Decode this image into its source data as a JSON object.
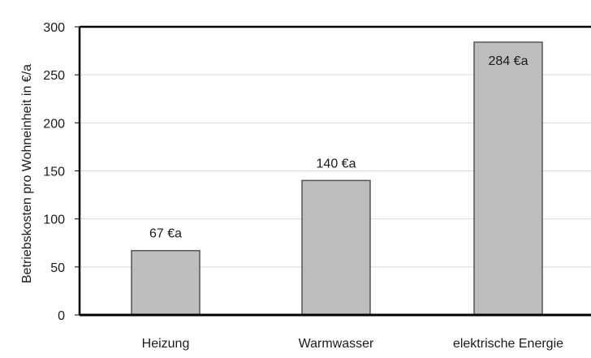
{
  "chart_data": {
    "type": "bar",
    "title": "",
    "xlabel": "",
    "ylabel": "Betriebskosten pro Wohneinheit in €/a",
    "categories": [
      "Heizung",
      "Warmwasser",
      "elektrische Energie"
    ],
    "values": [
      67,
      140,
      284
    ],
    "data_labels": [
      "67 €a",
      "140 €a",
      "284 €a"
    ],
    "ylim": [
      0,
      300
    ],
    "yticks": [
      0,
      50,
      100,
      150,
      200,
      250,
      300
    ],
    "grid": true,
    "legend": "none",
    "colors": {
      "bar_fill": "#bdbdbd",
      "bar_stroke": "#555555",
      "grid": "#d9d9d9",
      "axis": "#000000"
    }
  }
}
